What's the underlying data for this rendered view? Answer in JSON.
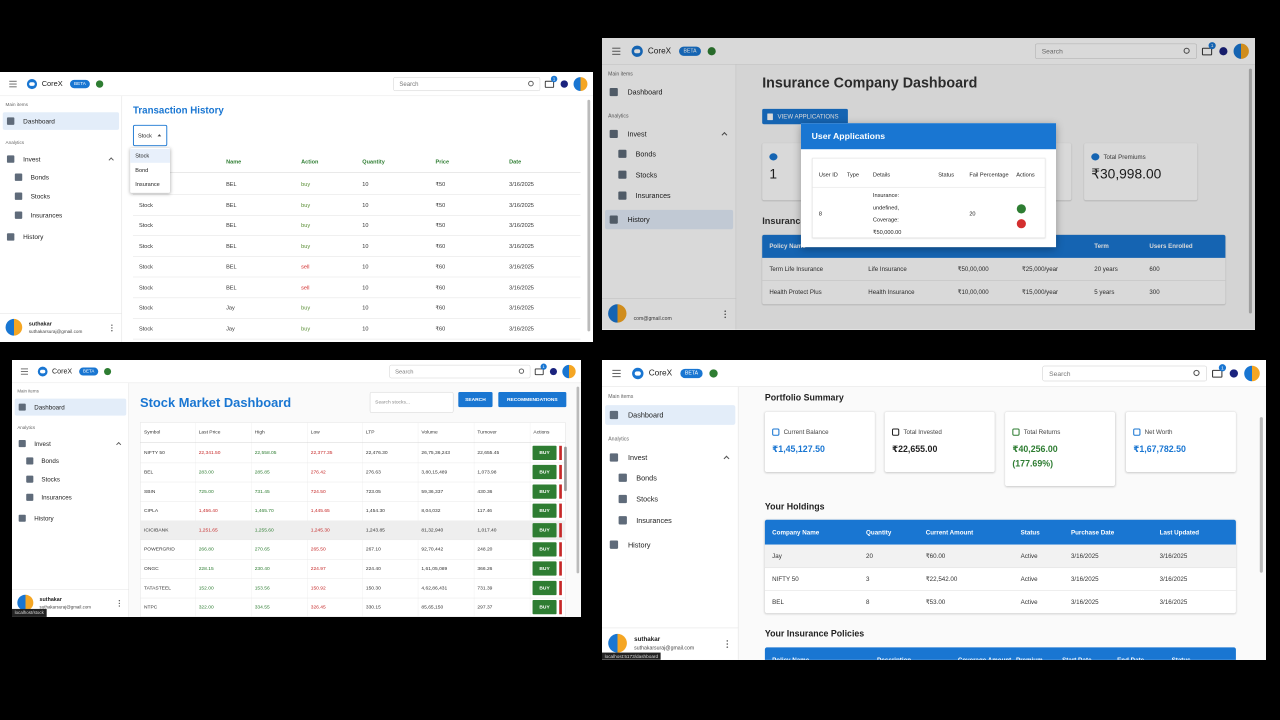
{
  "screens": [
    {
      "topbar": {
        "brand": "CoreX",
        "badge": "BETA",
        "search": "Search",
        "mail_badge": "1"
      },
      "sidebar": {
        "main_items": "Main items",
        "dashboard": "Dashboard",
        "analytics": "Analytics",
        "invest": "Invest",
        "bonds": "Bonds",
        "stocks": "Stocks",
        "insurances": "Insurances",
        "history": "History",
        "user_name": "suthakar",
        "user_email": "suthakarsuraj@gmail.com",
        "active": "dashboard"
      },
      "title": "Transaction History",
      "select": "Stock",
      "dropdown": [
        "Stock",
        "Bond",
        "Insurance"
      ],
      "table": {
        "columns": [
          null,
          "Name",
          "Action",
          "Quantity",
          "Price",
          "Date"
        ],
        "rows": [
          [
            "Stock",
            "BEL",
            "buy",
            "10",
            "₹50",
            "3/16/2025"
          ],
          [
            "Stock",
            "BEL",
            "buy",
            "10",
            "₹50",
            "3/16/2025"
          ],
          [
            "Stock",
            "BEL",
            "buy",
            "10",
            "₹50",
            "3/16/2025"
          ],
          [
            "Stock",
            "BEL",
            "buy",
            "10",
            "₹60",
            "3/16/2025"
          ],
          [
            "Stock",
            "BEL",
            "sell",
            "10",
            "₹60",
            "3/16/2025"
          ],
          [
            "Stock",
            "BEL",
            "sell",
            "10",
            "₹60",
            "3/16/2025"
          ],
          [
            "Stock",
            "Jay",
            "buy",
            "10",
            "₹60",
            "3/16/2025"
          ],
          [
            "Stock",
            "Jay",
            "buy",
            "10",
            "₹60",
            "3/16/2025"
          ]
        ],
        "action_colors": [
          "#558b2f",
          "#558b2f",
          "#558b2f",
          "#558b2f",
          "#d32f2f",
          "#d32f2f",
          "#558b2f",
          "#558b2f"
        ]
      }
    },
    {
      "topbar": {
        "brand": "CoreX",
        "badge": "BETA",
        "search": "Search",
        "mail_badge": "1"
      },
      "sidebar": {
        "main_items": "Main items",
        "dashboard": "Dashboard",
        "analytics": "Analytics",
        "invest": "Invest",
        "bonds": "Bonds",
        "stocks": "Stocks",
        "insurances": "Insurances",
        "history": "History",
        "user_email": "com@gmail.com",
        "active": "history"
      },
      "title": "Insurance Company Dashboard",
      "button": "VIEW APPLICATIONS",
      "cards": [
        {
          "value": "1"
        },
        {
          "label": "Total Premiums",
          "value": "₹30,998.00"
        }
      ],
      "section": "Insurance",
      "table": {
        "columns": [
          "Policy Name",
          null,
          null,
          null,
          "Term",
          "Users Enrolled"
        ],
        "rows": [
          [
            "Term Life Insurance",
            "Life Insurance",
            "₹50,00,000",
            "₹25,000/year",
            "20 years",
            "600"
          ],
          [
            "Health Protect Plus",
            "Health Insurance",
            "₹10,00,000",
            "₹15,000/year",
            "5 years",
            "300"
          ]
        ]
      },
      "modal": {
        "title": "User Applications",
        "columns": [
          "User ID",
          "Type",
          "Details",
          "Status",
          "Fail Percentage",
          "Actions"
        ],
        "row": [
          "8",
          null,
          "Insurance: undefined, Coverage: ₹50,000.00",
          null,
          "20"
        ]
      }
    },
    {
      "topbar": {
        "brand": "CoreX",
        "badge": "BETA",
        "search": "Search",
        "mail_badge": "1"
      },
      "sidebar": {
        "main_items": "Main items",
        "dashboard": "Dashboard",
        "analytics": "Analytics",
        "invest": "Invest",
        "bonds": "Bonds",
        "stocks": "Stocks",
        "insurances": "Insurances",
        "history": "History",
        "user_name": "suthakar",
        "user_email": "suthakarsuraj@gmail.com",
        "active": "dashboard"
      },
      "title": "Stock Market Dashboard",
      "search_placeholder": "Search stocks...",
      "buttons": [
        "SEARCH",
        "RECOMMENDATIONS"
      ],
      "table": {
        "columns": [
          "Symbol",
          "Last Price",
          "High",
          "Low",
          "LTP",
          "Volume",
          "Turnover",
          "Actions"
        ],
        "rows": [
          [
            "NIFTY 50",
            "22,341.50",
            "22,558.05",
            "22,377.35",
            "22,476.30",
            "26,75,36,243",
            "22,655.45",
            "BUY"
          ],
          [
            "BEL",
            "283.00",
            "285.85",
            "276.42",
            "276.63",
            "3,80,15,489",
            "1,073.98",
            "BUY"
          ],
          [
            "SBIN",
            "725.00",
            "731.45",
            "724.50",
            "723.05",
            "59,36,337",
            "430.36",
            "BUY"
          ],
          [
            "CIPLA",
            "1,456.40",
            "1,465.70",
            "1,445.65",
            "1,454.30",
            "8,04,032",
            "117.46",
            "BUY"
          ],
          [
            "ICICIBANK",
            "1,251.65",
            "1,255.60",
            "1,245.30",
            "1,243.85",
            "81,32,940",
            "1,017.40",
            "BUY"
          ],
          [
            "POWERGRID",
            "266.80",
            "270.65",
            "265.50",
            "267.10",
            "92,70,442",
            "248.20",
            "BUY"
          ],
          [
            "ONGC",
            "228.15",
            "230.40",
            "224.97",
            "224.40",
            "1,61,05,089",
            "366.26",
            "BUY"
          ],
          [
            "TATASTEEL",
            "152.00",
            "153.56",
            "150.92",
            "150.30",
            "4,62,86,431",
            "731.39",
            "BUY"
          ],
          [
            "NTPC",
            "322.00",
            "334.55",
            "326.45",
            "330.15",
            "85,65,150",
            "297.37",
            "BUY"
          ]
        ],
        "last_price_colors": [
          "#c62828",
          "#2e7d32",
          "#2e7d32",
          "#c62828",
          "#c62828",
          "#2e7d32",
          "#2e7d32",
          "#2e7d32",
          "#2e7d32"
        ],
        "high_color": "#2e7d32",
        "low_color": "#c62828",
        "highlight_row": 4
      },
      "status_bar": "localhost/stock"
    },
    {
      "topbar": {
        "brand": "CoreX",
        "badge": "BETA",
        "search": "Search",
        "mail_badge": "1"
      },
      "sidebar": {
        "main_items": "Main items",
        "dashboard": "Dashboard",
        "analytics": "Analytics",
        "invest": "Invest",
        "bonds": "Bonds",
        "stocks": "Stocks",
        "insurances": "Insurances",
        "history": "History",
        "user_name": "suthakar",
        "user_email": "suthakarsuraj@gmail.com",
        "active": "dashboard"
      },
      "title": "Portfolio Summary",
      "cards": [
        {
          "label": "Current Balance",
          "value": "₹1,45,127.50",
          "color": "#1976d2"
        },
        {
          "label": "Total Invested",
          "value": "₹22,655.00",
          "color": "#222222"
        },
        {
          "label": "Total Returns",
          "value": "₹40,256.00 (177.69%)",
          "color": "#2e7d32"
        },
        {
          "label": "Net Worth",
          "value": "₹1,67,782.50",
          "color": "#1976d2"
        }
      ],
      "holdings_title": "Your Holdings",
      "holdings": {
        "columns": [
          "Company Name",
          "Quantity",
          "Current Amount",
          "Status",
          "Purchase Date",
          "Last Updated"
        ],
        "rows": [
          [
            "Jay",
            "20",
            "₹60.00",
            "Active",
            "3/16/2025",
            "3/16/2025"
          ],
          [
            "NIFTY 50",
            "3",
            "₹22,542.00",
            "Active",
            "3/16/2025",
            "3/16/2025"
          ],
          [
            "BEL",
            "8",
            "₹53.00",
            "Active",
            "3/16/2025",
            "3/16/2025"
          ]
        ]
      },
      "policies_title": "Your Insurance Policies",
      "policies": {
        "columns": [
          "Policy Name",
          "Description",
          "Coverage Amount",
          "Premium",
          "Start Date",
          "End Date",
          "Status"
        ]
      },
      "status_bar": "localhost:5173/dashboard"
    }
  ]
}
